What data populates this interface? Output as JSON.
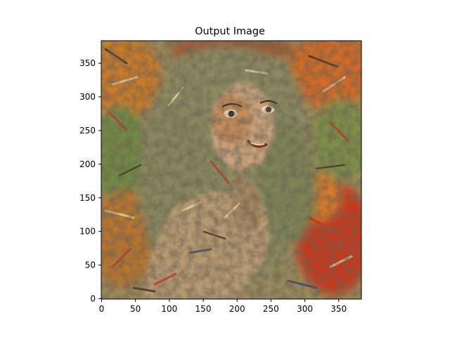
{
  "chart_data": {
    "type": "image",
    "title": "Output Image",
    "xlabel": "",
    "ylabel": "",
    "xlim": [
      -0.5,
      383.5
    ],
    "ylim": [
      383.5,
      -0.5
    ],
    "xticks": [
      0,
      50,
      100,
      150,
      200,
      250,
      300,
      350
    ],
    "yticks": [
      0,
      50,
      100,
      150,
      200,
      250,
      300,
      350
    ],
    "image_content": "stylized painted portrait of a woman with long hair; colorful autumn-leaf style texture in orange, red, green, olive and cream",
    "grid": false,
    "palette": {
      "olive": "#8a8a62",
      "green": "#6f8a45",
      "orange": "#d9792a",
      "red": "#c8371f",
      "cream": "#e8d8a8",
      "dark": "#3b3226",
      "skin": "#c9a37c",
      "navy": "#3d4666"
    }
  }
}
